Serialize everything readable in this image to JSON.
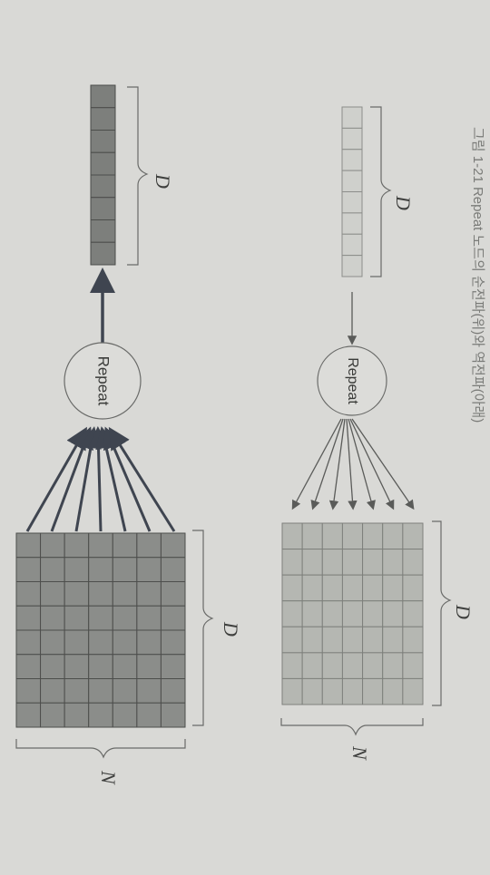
{
  "caption": "그림 1-21 Repeat 노드의 순전파(위)와 역전파(아래)",
  "forward": {
    "node_label": "Repeat",
    "input_vector_label": "D",
    "matrix_width_label": "D",
    "matrix_height_label": "N",
    "input_cells": 8,
    "matrix_rows": 7,
    "matrix_cols": 7,
    "arrow_count": 7
  },
  "backward": {
    "node_label": "Repeat",
    "output_vector_label": "D",
    "matrix_width_label": "D",
    "matrix_height_label": "N",
    "output_cells": 8,
    "matrix_rows": 8,
    "matrix_cols": 7,
    "arrow_count": 7
  },
  "colors": {
    "background": "#d9d9d6",
    "light_cell": "#cfd0cc",
    "light_matrix": "#b5b7b2",
    "dark_cell": "#7d7f7c",
    "dark_matrix": "#8b8d8a",
    "line": "#4a4b49",
    "dark_line": "#3f4550"
  }
}
